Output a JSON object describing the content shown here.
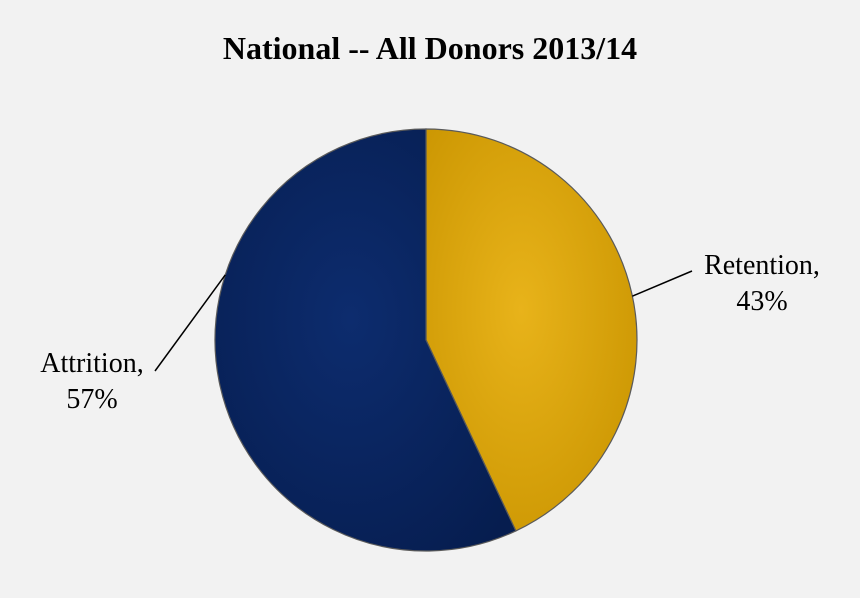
{
  "chart_data": {
    "type": "pie",
    "title": "National -- All Donors 2013/14",
    "slices": [
      {
        "label": "Retention",
        "value": 43,
        "value_text": "43%",
        "color": "#dba40a"
      },
      {
        "label": "Attrition",
        "value": 57,
        "value_text": "57%",
        "color": "#0a2763"
      }
    ],
    "start": "12 o'clock",
    "direction": "clockwise",
    "legend": "none",
    "label_style": "outside with leader lines"
  }
}
